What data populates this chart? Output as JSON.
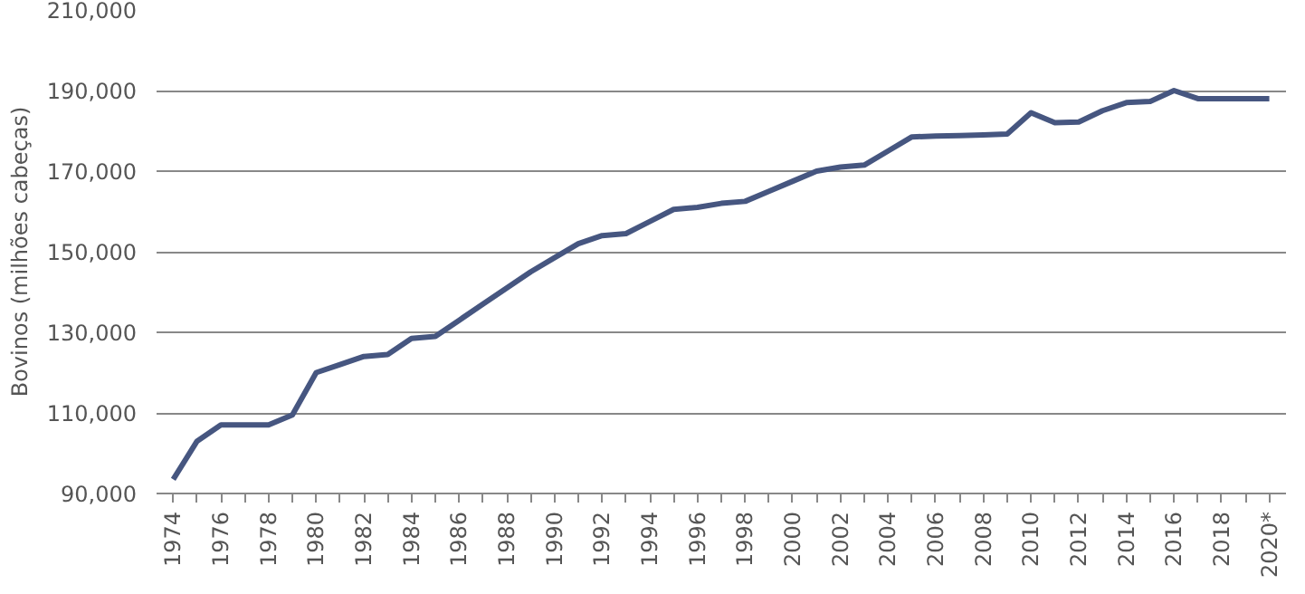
{
  "chart_data": {
    "type": "line",
    "ylabel": "Bovinos (milhões cabeças)",
    "categories": [
      "1974",
      null,
      "1976",
      null,
      "1978",
      null,
      "1980",
      null,
      "1982",
      null,
      "1984",
      null,
      "1986",
      null,
      "1988",
      null,
      "1990",
      null,
      "1992",
      null,
      "1994",
      null,
      "1996",
      null,
      "1998",
      null,
      "2000",
      null,
      "2002",
      null,
      "2004",
      null,
      "2006",
      null,
      "2008",
      null,
      "2010",
      null,
      "2012",
      null,
      "2014",
      null,
      "2016",
      null,
      "2018",
      null,
      "2020*"
    ],
    "series": [
      {
        "color": "#465680",
        "values": [
          93500,
          103000,
          107000,
          107000,
          107000,
          109500,
          120000,
          122000,
          124000,
          124500,
          128500,
          129000,
          133000,
          137000,
          141000,
          145000,
          148500,
          152000,
          154000,
          154500,
          157500,
          160500,
          161000,
          162000,
          162500,
          165000,
          167500,
          170000,
          171000,
          171500,
          175000,
          178500,
          178700,
          178800,
          179000,
          179200,
          184500,
          182000,
          182200,
          185000,
          187000,
          187300,
          190000,
          188000,
          188000,
          188000,
          188000
        ]
      }
    ],
    "ylim": [
      90000,
      210000
    ],
    "yticks": [
      {
        "value": 90000,
        "label": "90,000"
      },
      {
        "value": 110000,
        "label": "110,000"
      },
      {
        "value": 130000,
        "label": "130,000"
      },
      {
        "value": 150000,
        "label": "150,000"
      },
      {
        "value": 170000,
        "label": "170,000"
      },
      {
        "value": 190000,
        "label": "190,000"
      },
      {
        "value": 210000,
        "label": "210,000"
      }
    ],
    "grid": "y",
    "marker": "none",
    "line_style": "solid"
  }
}
